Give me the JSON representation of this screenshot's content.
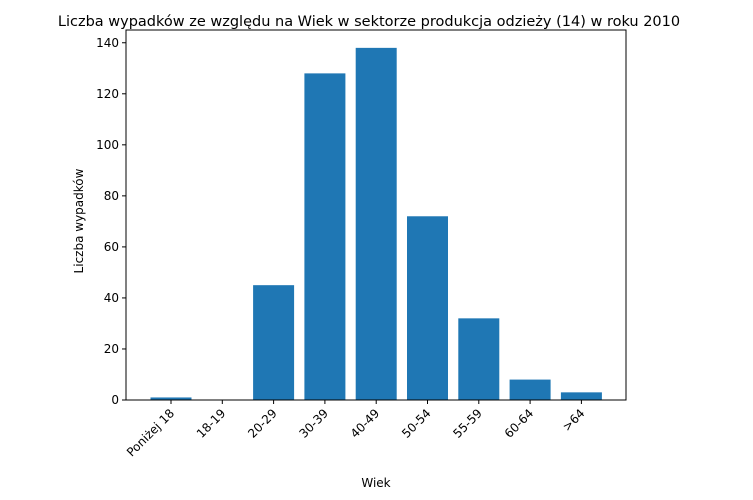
{
  "chart_data": {
    "type": "bar",
    "title": "Liczba wypadków ze względu na Wiek w sektorze produkcja odzieży  (14)   w roku 2010",
    "xlabel": "Wiek",
    "ylabel": "Liczba wypadków",
    "categories": [
      "Poniżej 18",
      "18-19",
      "20-29",
      "30-39",
      "40-49",
      "50-54",
      "55-59",
      "60-64",
      ">64"
    ],
    "values": [
      1,
      0,
      45,
      128,
      138,
      72,
      32,
      8,
      3
    ],
    "ylim": [
      0,
      145
    ],
    "yticks": [
      0,
      20,
      40,
      60,
      80,
      100,
      120,
      140
    ],
    "grid": false,
    "colors": {
      "bar": "#1f77b4"
    }
  }
}
